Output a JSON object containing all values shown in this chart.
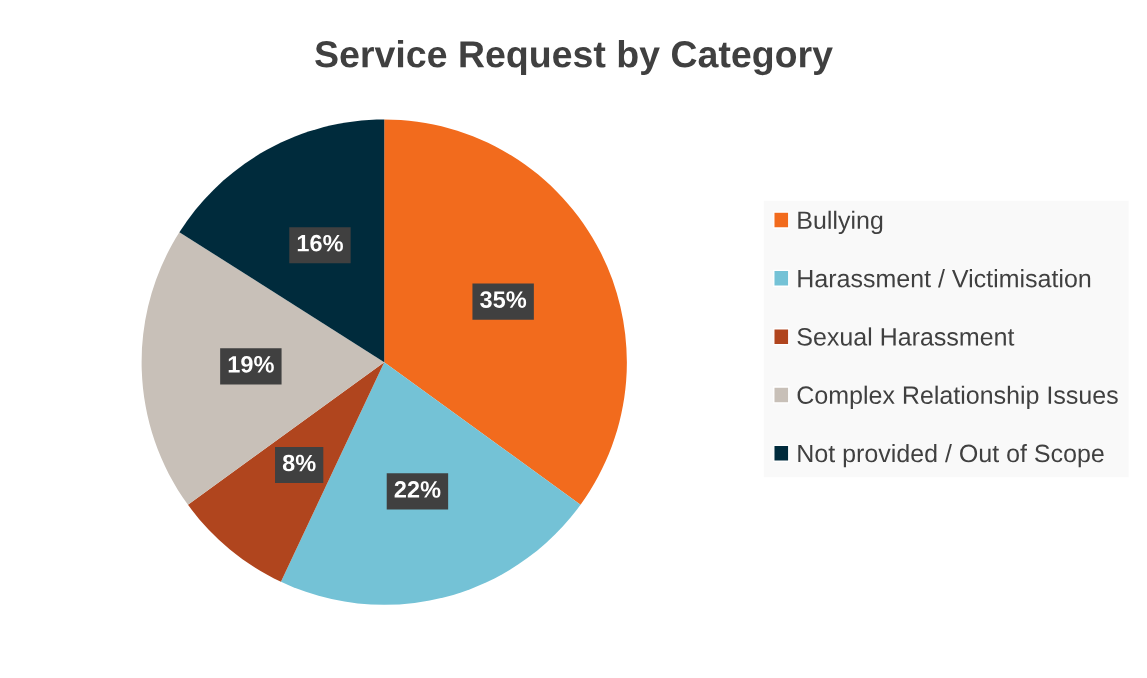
{
  "chart_data": {
    "type": "pie",
    "title": "Service Request by Category",
    "categories": [
      "Bullying",
      "Harassment / Victimisation",
      "Sexual Harassment",
      "Complex Relationship Issues",
      "Not provided / Out of Scope"
    ],
    "values": [
      35,
      22,
      8,
      19,
      16
    ],
    "colors": [
      "#f26b1d",
      "#74c2d6",
      "#b0451e",
      "#c8c0b8",
      "#002b3c"
    ],
    "value_labels": [
      "35%",
      "22%",
      "8%",
      "19%",
      "16%"
    ],
    "legend": "right"
  }
}
